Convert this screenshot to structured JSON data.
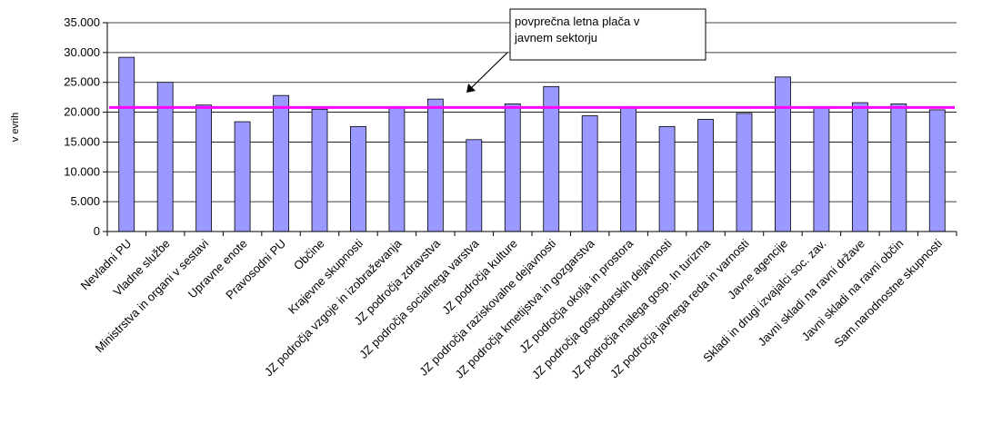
{
  "chart_data": {
    "type": "bar",
    "title": "",
    "xlabel": "",
    "ylabel": "v evrih",
    "ylim": [
      0,
      35000
    ],
    "yticks": [
      0,
      5000,
      10000,
      15000,
      20000,
      25000,
      30000,
      35000
    ],
    "ytick_labels": [
      "0",
      "5.000",
      "10.000",
      "15.000",
      "20.000",
      "25.000",
      "30.000",
      "35.000"
    ],
    "grid": true,
    "bar_color": "#9999ff",
    "reference_line": {
      "value": 20800,
      "color": "#ff00ff"
    },
    "annotation": {
      "lines": [
        "povprečna letna plača v",
        "javnem sektorju"
      ]
    },
    "categories": [
      "Nevladni PU",
      "Vladne službe",
      "Ministrstva in organi v sestavi",
      "Upravne enote",
      "Pravosodni PU",
      "Občine",
      "Krajevne skupnosti",
      "JZ področja vzgoje in izobraževanja",
      "JZ področja zdravstva",
      "JZ področja socialnega varstva",
      "JZ področja kulture",
      "JZ področja raziskovalne dejavnosti",
      "JZ področja kmetijstva in gozgarstva",
      "JZ področja okolja in prostora",
      "JZ področja gospodarskih dejavnosti",
      "JZ področja malega gosp. In turizma",
      "JZ področja javnega reda in varnosti",
      "Javne agencije",
      "Skladi in drugi izvajalci soc. zav.",
      "Javni skladi na ravni države",
      "Javni skladi na ravni občin",
      "Sam.narodnostne skupnosti"
    ],
    "values": [
      29200,
      25000,
      21200,
      18400,
      22800,
      20500,
      17600,
      20700,
      22200,
      15400,
      21400,
      24300,
      19400,
      20700,
      17600,
      18800,
      19800,
      25900,
      20700,
      21600,
      21400,
      20400
    ]
  }
}
